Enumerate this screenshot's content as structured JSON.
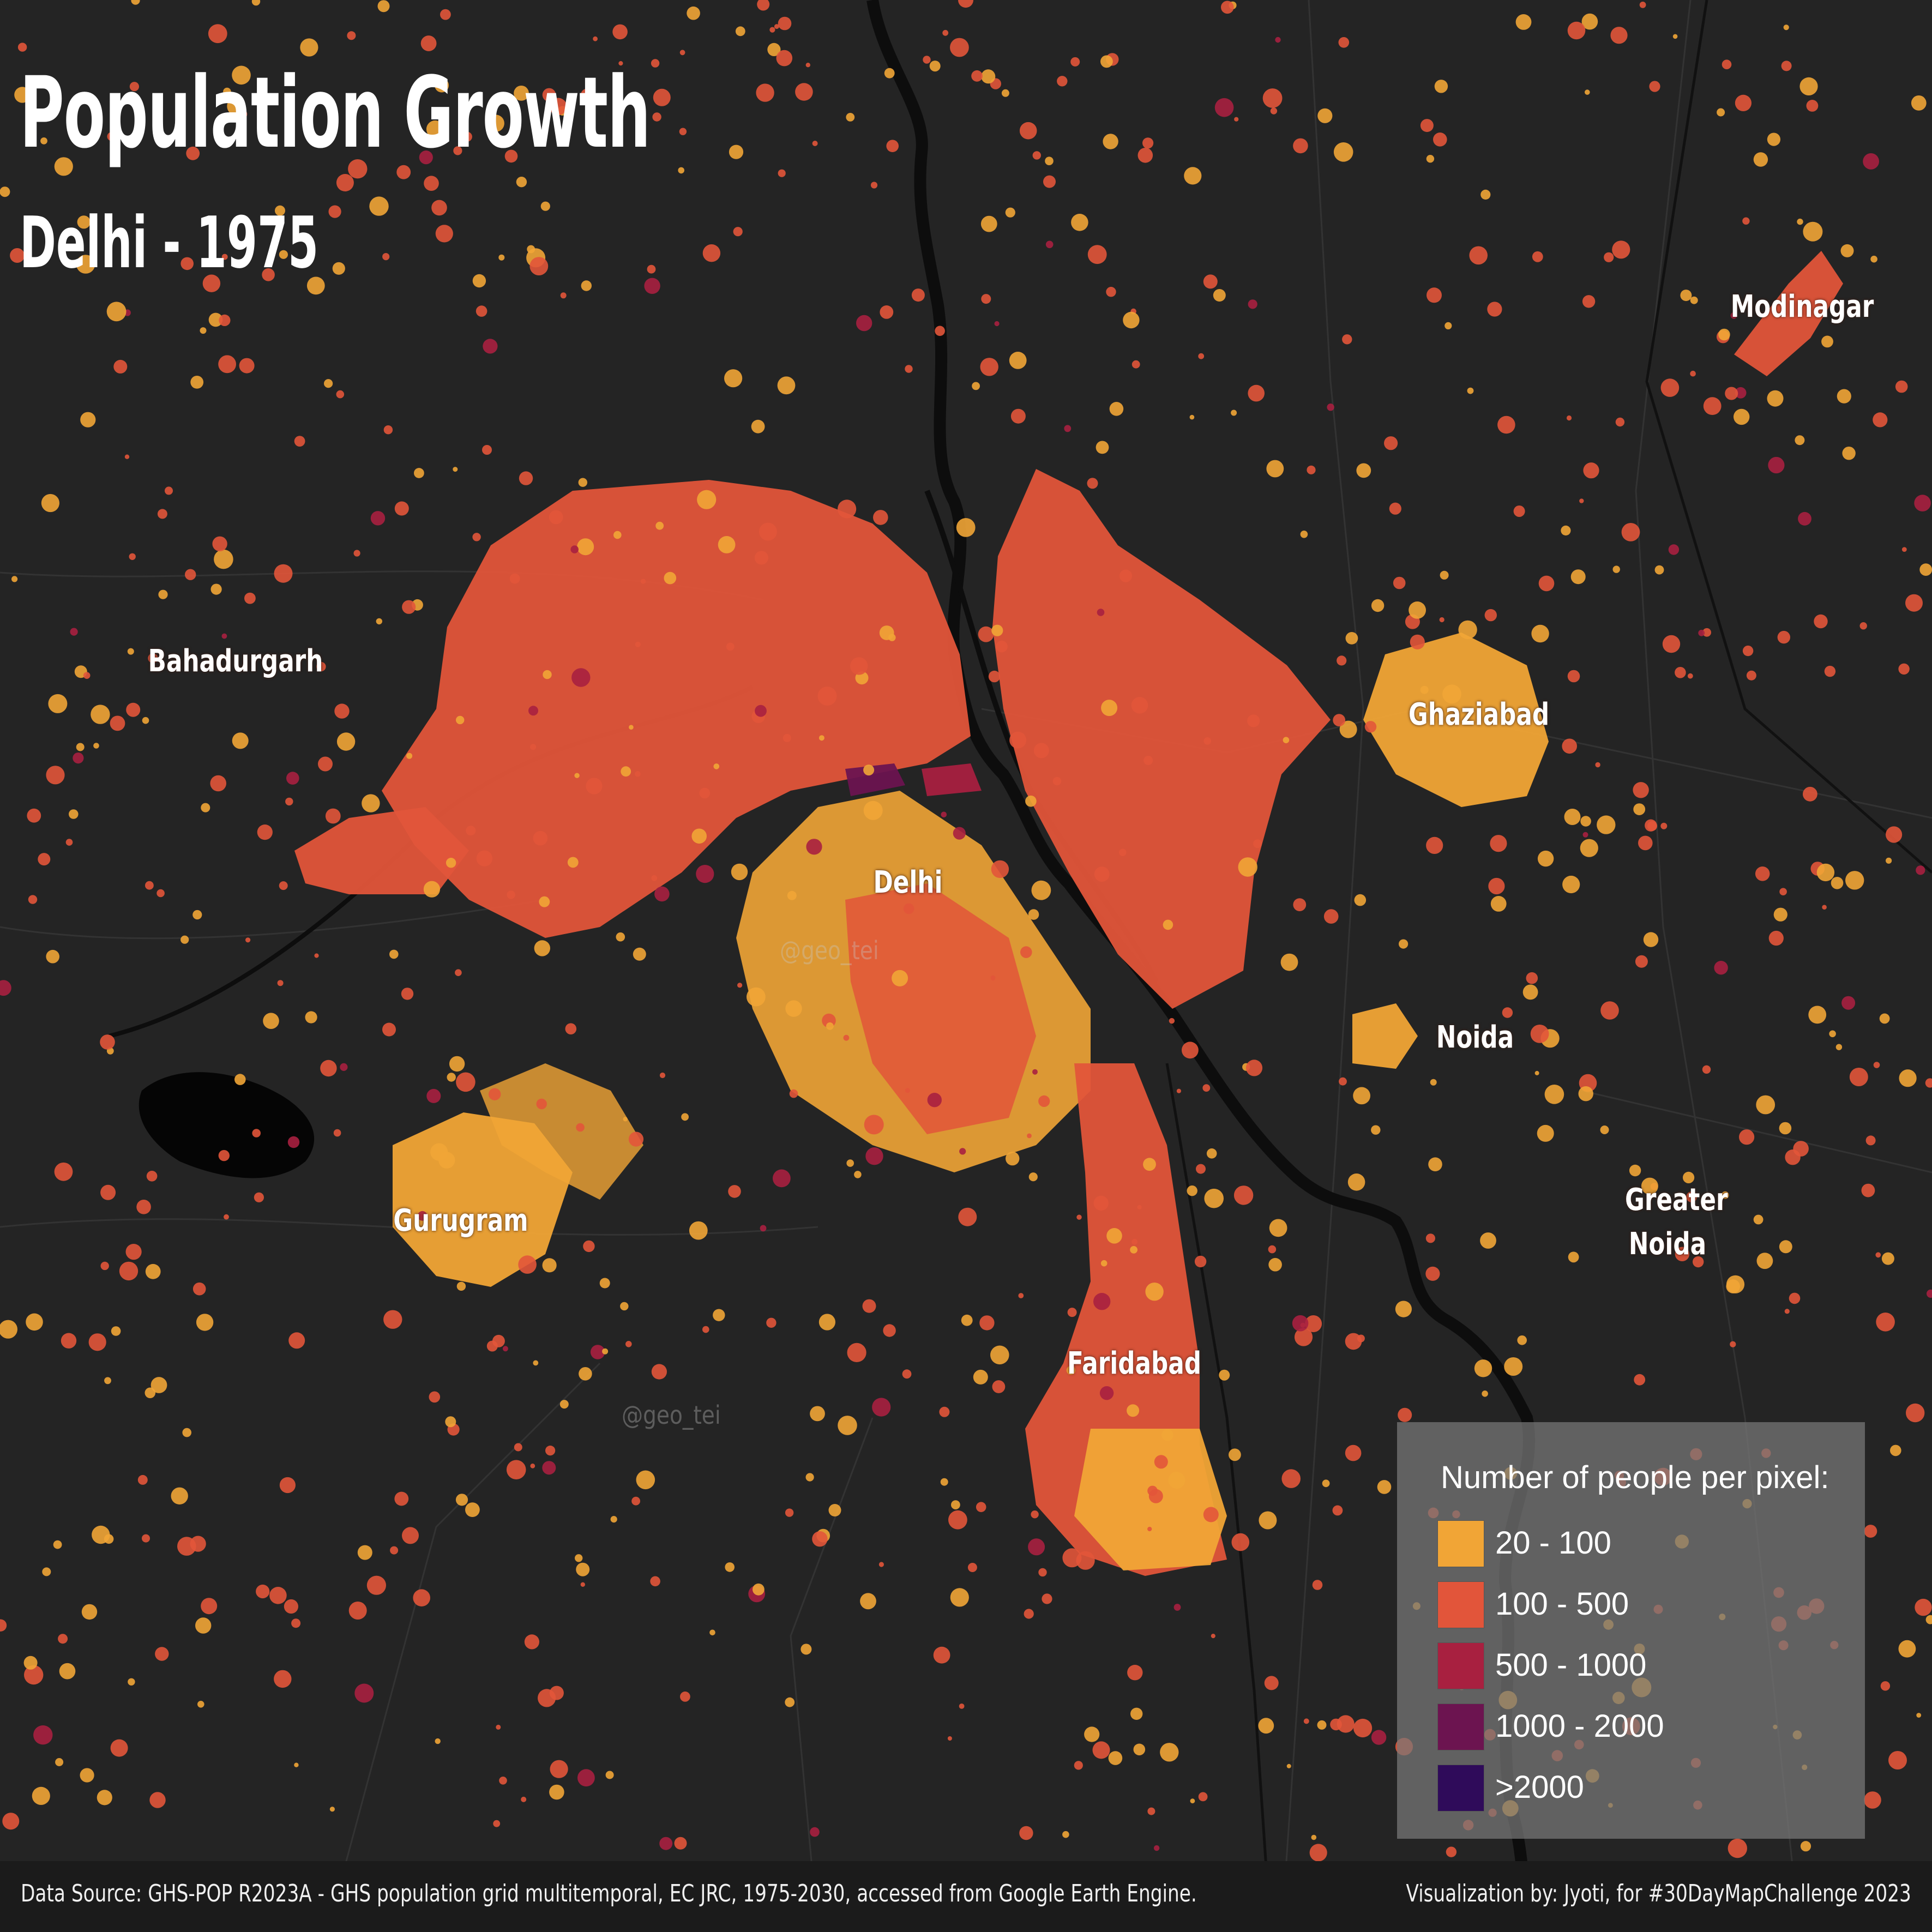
{
  "title": "Population Growth",
  "subtitle": "Delhi -  1975",
  "places": [
    {
      "name": "Modinagar"
    },
    {
      "name": "Bahadurgarh"
    },
    {
      "name": "Ghaziabad"
    },
    {
      "name": "Delhi"
    },
    {
      "name": "Noida"
    },
    {
      "name": "Greater Noida"
    },
    {
      "name": "Gurugram"
    },
    {
      "name": "Faridabad"
    }
  ],
  "watermark": "@geo_tei",
  "legend": {
    "title": "Number of people per pixel:",
    "items": [
      {
        "label": "20 - 100",
        "color": "#f1a536"
      },
      {
        "label": "100 - 500",
        "color": "#e2553a"
      },
      {
        "label": "500 - 1000",
        "color": "#a82040"
      },
      {
        "label": "1000 - 2000",
        "color": "#6c1450"
      },
      {
        "label": ">2000",
        "color": "#2f0b5a"
      }
    ]
  },
  "colors": {
    "background": "#242424",
    "river": "#0d0d0d",
    "footer": "#1b1b1b"
  },
  "footer": {
    "source": "Data Source: GHS-POP R2023A - GHS population grid multitemporal, EC JRC, 1975-2030, accessed from Google Earth Engine.",
    "credit": "Visualization by: Jyoti, for #30DayMapChallenge 2023"
  }
}
